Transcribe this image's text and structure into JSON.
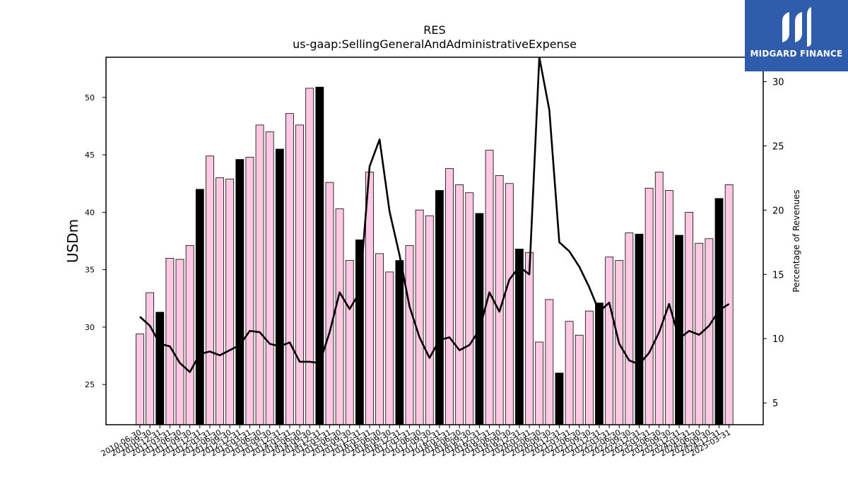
{
  "chart_data": {
    "type": "bar",
    "title": "RES",
    "subtitle": "us-gaap:SellingGeneralAndAdministrativeExpense",
    "ylabel": "USDm",
    "y2label": "Percentage of Revenues",
    "ylim": [
      21.5,
      53.5
    ],
    "y2lim": [
      3.3,
      31.9
    ],
    "yticks": [
      25,
      30,
      35,
      40,
      45,
      50
    ],
    "y2ticks": [
      5,
      10,
      15,
      20,
      25,
      30
    ],
    "categories": [
      "2010-06-30",
      "2010-09-30",
      "2010-12-31",
      "2011-03-31",
      "2011-06-30",
      "2011-09-30",
      "2011-12-31",
      "2012-03-31",
      "2012-06-30",
      "2012-09-30",
      "2012-12-31",
      "2013-03-31",
      "2013-06-30",
      "2013-09-30",
      "2013-12-31",
      "2014-03-31",
      "2014-06-30",
      "2014-09-30",
      "2014-12-31",
      "2015-03-31",
      "2015-06-30",
      "2015-09-30",
      "2015-12-31",
      "2016-03-31",
      "2016-06-30",
      "2016-09-30",
      "2016-12-31",
      "2017-03-31",
      "2017-06-30",
      "2017-09-30",
      "2017-12-31",
      "2018-03-31",
      "2018-06-30",
      "2018-09-30",
      "2018-12-31",
      "2019-03-31",
      "2019-06-30",
      "2019-09-30",
      "2019-12-31",
      "2020-03-31",
      "2020-06-30",
      "2020-09-30",
      "2020-12-31",
      "2021-03-31",
      "2021-06-30",
      "2021-09-30",
      "2021-12-31",
      "2022-03-31",
      "2022-06-30",
      "2022-09-30",
      "2022-12-31",
      "2023-03-31",
      "2023-06-30",
      "2023-09-30",
      "2023-12-31",
      "2024-03-31",
      "2024-06-30",
      "2024-09-30",
      "2024-12-31",
      "2025-03-31"
    ],
    "series": [
      {
        "type": "bar",
        "values": [
          29.4,
          33.0,
          31.3,
          36.0,
          35.9,
          37.1,
          42.0,
          44.9,
          43.0,
          42.9,
          44.6,
          44.8,
          47.6,
          47.0,
          45.5,
          48.6,
          47.6,
          50.8,
          50.9,
          42.6,
          40.3,
          35.8,
          37.6,
          43.5,
          36.4,
          34.8,
          35.8,
          37.1,
          40.2,
          39.7,
          41.9,
          43.8,
          42.4,
          41.7,
          39.9,
          45.4,
          43.2,
          42.5,
          36.8,
          36.5,
          28.7,
          32.4,
          26.0,
          30.5,
          29.3,
          31.4,
          32.1,
          36.1,
          35.8,
          38.2,
          38.1,
          42.1,
          43.5,
          41.9,
          38.0,
          40.0,
          37.3,
          37.7,
          41.2,
          42.4
        ],
        "highlight_quarter": "Q4",
        "color": "#ffc9e3",
        "highlight_color": "#000000"
      },
      {
        "type": "line",
        "axis": "right",
        "values": [
          11.7,
          11.0,
          9.6,
          9.4,
          8.1,
          7.4,
          8.8,
          9.0,
          8.7,
          9.1,
          9.5,
          10.6,
          10.5,
          9.6,
          9.4,
          9.7,
          8.2,
          8.2,
          8.1,
          10.5,
          13.6,
          12.3,
          13.6,
          23.4,
          25.5,
          19.9,
          16.5,
          12.5,
          10.1,
          8.5,
          9.9,
          10.1,
          9.1,
          9.5,
          10.7,
          13.6,
          12.1,
          14.6,
          15.6,
          15.0,
          31.9,
          27.8,
          17.5,
          16.8,
          15.6,
          14.0,
          12.1,
          12.8,
          9.6,
          8.3,
          8.0,
          8.9,
          10.5,
          12.7,
          10.0,
          10.6,
          10.3,
          11.0,
          12.2,
          12.7
        ],
        "color": "#000000"
      }
    ]
  },
  "logo": {
    "text": "MIDGARD FINANCE"
  }
}
